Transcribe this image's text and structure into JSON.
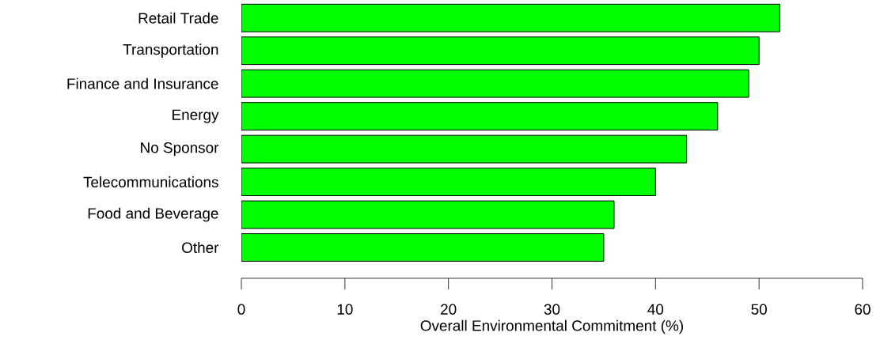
{
  "chart_data": {
    "type": "bar",
    "orientation": "horizontal",
    "xlabel": "Overall Environmental Commitment (%)",
    "categories": [
      "Retail Trade",
      "Transportation",
      "Finance and Insurance",
      "Energy",
      "No Sponsor",
      "Telecommunications",
      "Food and Beverage",
      "Other"
    ],
    "values": [
      52,
      50,
      49,
      46,
      43,
      40,
      36,
      35
    ],
    "color": "#00ff00",
    "xlim": [
      0,
      60
    ],
    "xticks": [
      0,
      10,
      20,
      30,
      40,
      50,
      60
    ]
  }
}
